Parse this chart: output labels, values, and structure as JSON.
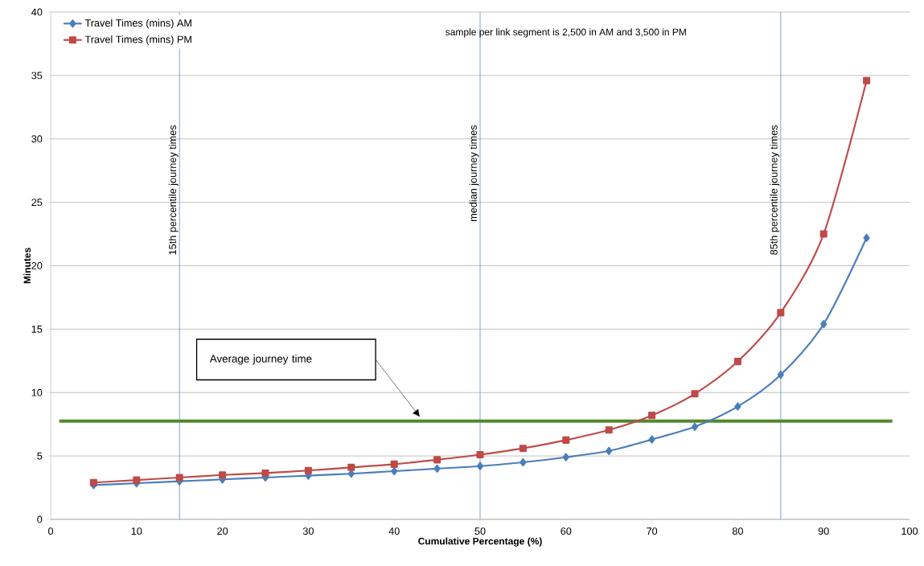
{
  "chart_data": {
    "type": "line",
    "xlabel": "Cumulative Percentage (%)",
    "ylabel": "Minutes",
    "annotations": [
      "sample per link segment is 2,500 in AM and 3,500 in PM",
      "Average journey time"
    ],
    "x": [
      5,
      10,
      15,
      20,
      25,
      30,
      35,
      40,
      45,
      50,
      55,
      60,
      65,
      70,
      75,
      80,
      85,
      90,
      95
    ],
    "series": [
      {
        "name": "Travel Times (mins) AM",
        "color": "#4a7ebb",
        "marker": "diamond",
        "values": [
          2.7,
          2.85,
          3.0,
          3.15,
          3.3,
          3.45,
          3.6,
          3.8,
          4.0,
          4.2,
          4.5,
          4.9,
          5.4,
          6.3,
          7.3,
          8.9,
          11.4,
          15.4,
          22.2
        ]
      },
      {
        "name": "Travel Times (mins) PM",
        "color": "#be4b48",
        "marker": "square",
        "values": [
          2.9,
          3.1,
          3.3,
          3.5,
          3.65,
          3.85,
          4.1,
          4.35,
          4.7,
          5.1,
          5.6,
          6.25,
          7.05,
          8.2,
          9.9,
          12.45,
          16.3,
          22.5,
          34.6
        ]
      }
    ],
    "ref_lines": [
      {
        "axis": "x",
        "value": 15,
        "label": "15th percentile journey times",
        "color": "#5b8fc9"
      },
      {
        "axis": "x",
        "value": 50,
        "label": "median journey times",
        "color": "#5b8fc9"
      },
      {
        "axis": "x",
        "value": 85,
        "label": "85th percentile journey times",
        "color": "#5b8fc9"
      },
      {
        "axis": "y",
        "value": 7.75,
        "color": "#4f8a2b"
      }
    ],
    "xlim": [
      0,
      100
    ],
    "ylim": [
      0,
      40
    ],
    "xticks": [
      0,
      10,
      20,
      30,
      40,
      50,
      60,
      70,
      80,
      90,
      100
    ],
    "yticks": [
      0,
      5,
      10,
      15,
      20,
      25,
      30,
      35,
      40
    ],
    "grid": "y",
    "legend": "top left"
  }
}
